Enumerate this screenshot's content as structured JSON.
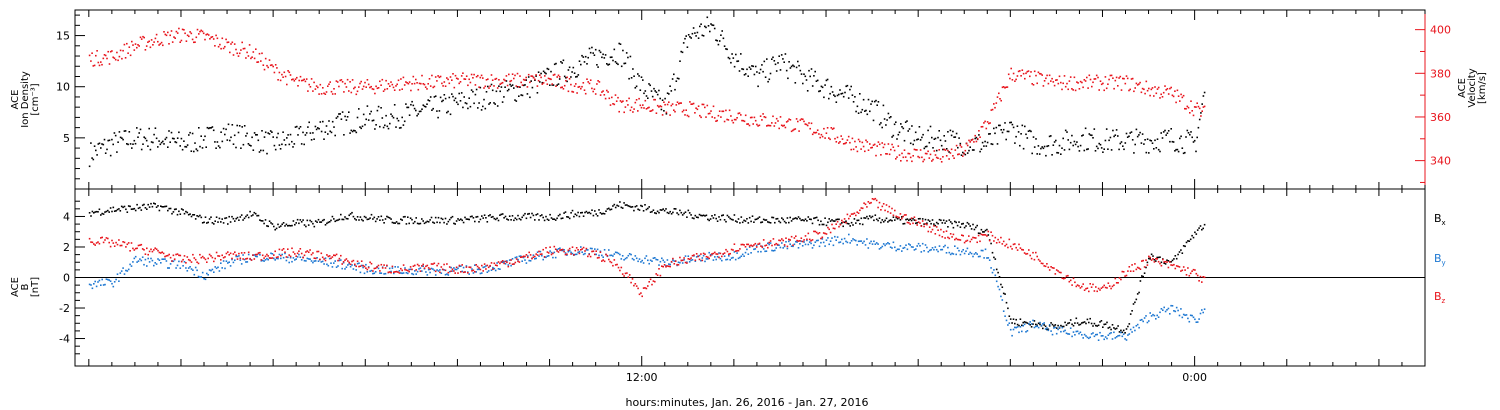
{
  "chart_data": [
    {
      "type": "scatter",
      "ylabel_left": [
        "ACE",
        "Ion Density",
        "[cm⁻³]"
      ],
      "ylabel_right": [
        "ACE",
        "Velocity",
        "[km/s]"
      ],
      "y_left_range": [
        0,
        17.5
      ],
      "y_left_ticks": [
        "5",
        "10",
        "15"
      ],
      "y_right_range": [
        327,
        409
      ],
      "y_right_ticks": [
        "340",
        "360",
        "380",
        "400"
      ],
      "series": [
        {
          "name": "",
          "color": "#000000",
          "axis": "left",
          "x": [
            0,
            0.5,
            1,
            1.5,
            2,
            2.5,
            3,
            3.5,
            4,
            4.5,
            5,
            5.5,
            6,
            6.5,
            7,
            7.5,
            8,
            8.5,
            9,
            9.5,
            10,
            10.5,
            11,
            11.5,
            12,
            12.5,
            13,
            13.5,
            14,
            14.5,
            15,
            15.5,
            16,
            16.5,
            17,
            17.5,
            18,
            18.5,
            19,
            19.5,
            20,
            20.5,
            21,
            21.5,
            22,
            22.5,
            23,
            23.5,
            24,
            24.2
          ],
          "y": [
            3.5,
            4.5,
            5,
            5,
            4.5,
            5,
            5.5,
            5,
            4.5,
            5,
            6,
            6.5,
            7,
            7,
            7.5,
            8,
            8.5,
            9,
            9.5,
            10,
            11,
            12,
            13,
            13.5,
            10,
            8,
            15,
            16,
            13,
            11,
            12.5,
            11,
            10,
            9,
            8,
            6,
            5,
            5,
            4.5,
            4.5,
            6,
            4.5,
            4.5,
            5,
            4.8,
            4.8,
            4.8,
            5,
            4.5,
            9.5
          ]
        },
        {
          "name": "",
          "color": "#e8141c",
          "axis": "right",
          "x": [
            0,
            0.5,
            1,
            1.5,
            2,
            2.5,
            3,
            3.5,
            4,
            4.5,
            5,
            5.5,
            6,
            6.5,
            7,
            7.5,
            8,
            8.5,
            9,
            9.5,
            10,
            10.5,
            11,
            11.5,
            12,
            12.5,
            13,
            13.5,
            14,
            14.5,
            15,
            15.5,
            16,
            16.5,
            17,
            17.5,
            18,
            18.5,
            19,
            19.5,
            20,
            20.5,
            21,
            21.5,
            22,
            22.5,
            23,
            23.5,
            24,
            24.2
          ],
          "y": [
            387,
            388,
            393,
            396,
            398,
            397,
            393,
            390,
            382,
            376,
            374,
            374,
            374,
            375,
            376,
            376,
            377,
            377,
            377,
            377,
            377,
            375,
            374,
            366,
            366,
            364,
            364,
            362,
            361,
            359,
            358,
            356,
            353,
            349,
            346,
            344,
            343,
            342,
            345,
            358,
            380,
            378,
            376,
            376,
            376,
            376,
            373,
            371,
            364,
            362
          ]
        }
      ]
    },
    {
      "type": "scatter",
      "ylabel": [
        "ACE",
        "B",
        "[nT]"
      ],
      "y_range": [
        -5.8,
        5.8
      ],
      "y_ticks": [
        "-4",
        "-2",
        "0",
        "2",
        "4"
      ],
      "legend": "right",
      "series": [
        {
          "name": "Bx",
          "color": "#000000",
          "x": [
            0,
            0.5,
            1,
            1.5,
            2,
            2.5,
            3,
            3.5,
            4,
            4.5,
            5,
            5.5,
            6,
            6.5,
            7,
            7.5,
            8,
            8.5,
            9,
            9.5,
            10,
            10.5,
            11,
            11.5,
            12,
            12.5,
            13,
            13.5,
            14,
            14.5,
            15,
            15.5,
            16,
            16.5,
            17,
            17.5,
            18,
            18.5,
            19,
            19.5,
            20,
            20.5,
            21,
            21.5,
            22,
            22.5,
            23,
            23.5,
            24,
            24.2
          ],
          "y": [
            4.3,
            4.5,
            4.6,
            4.7,
            4.3,
            3.8,
            3.8,
            4.2,
            3.4,
            3.6,
            3.6,
            4.1,
            4,
            3.8,
            3.8,
            3.8,
            3.8,
            3.9,
            4,
            4,
            4,
            4.2,
            4.3,
            4.8,
            4.6,
            4.4,
            4.2,
            4,
            3.9,
            3.8,
            3.8,
            3.8,
            3.7,
            3.6,
            3.9,
            3.8,
            3.7,
            3.6,
            3.5,
            3,
            -2.8,
            -3,
            -3.2,
            -2.8,
            -3,
            -3.4,
            1.5,
            1,
            3,
            3.5
          ]
        },
        {
          "name": "By",
          "color": "#1e78d2",
          "x": [
            0,
            0.5,
            1,
            1.5,
            2,
            2.5,
            3,
            3.5,
            4,
            4.5,
            5,
            5.5,
            6,
            6.5,
            7,
            7.5,
            8,
            8.5,
            9,
            9.5,
            10,
            10.5,
            11,
            11.5,
            12,
            12.5,
            13,
            13.5,
            14,
            14.5,
            15,
            15.5,
            16,
            16.5,
            17,
            17.5,
            18,
            18.5,
            19,
            19.5,
            20,
            20.5,
            21,
            21.5,
            22,
            22.5,
            23,
            23.5,
            24,
            24.2
          ],
          "y": [
            -0.4,
            -0.3,
            1.2,
            1,
            0.9,
            0.2,
            1,
            1.4,
            1.4,
            1.3,
            1.1,
            0.9,
            0.6,
            0.5,
            0.5,
            0.5,
            0.5,
            0.6,
            0.9,
            1.3,
            1.6,
            1.8,
            1.8,
            1.4,
            1.3,
            1,
            1.2,
            1.4,
            1.5,
            2,
            2.1,
            2.2,
            2.4,
            2.6,
            2.2,
            2.1,
            2,
            1.9,
            1.8,
            1.6,
            -3.6,
            -3,
            -3.5,
            -3.6,
            -3.8,
            -3.8,
            -2.5,
            -2,
            -2.8,
            -2
          ]
        },
        {
          "name": "Bz",
          "color": "#e8141c",
          "x": [
            0,
            0.5,
            1,
            1.5,
            2,
            2.5,
            3,
            3.5,
            4,
            4.5,
            5,
            5.5,
            6,
            6.5,
            7,
            7.5,
            8,
            8.5,
            9,
            9.5,
            10,
            10.5,
            11,
            11.5,
            12,
            12.5,
            13,
            13.5,
            14,
            14.5,
            15,
            15.5,
            16,
            16.5,
            17,
            17.5,
            18,
            18.5,
            19,
            19.5,
            20,
            20.5,
            21,
            21.5,
            22,
            22.5,
            23,
            23.5,
            24,
            24.2
          ],
          "y": [
            2.5,
            2.3,
            2,
            1.7,
            1.2,
            1.3,
            1.5,
            1.4,
            1.6,
            1.7,
            1.5,
            1.2,
            0.8,
            0.6,
            0.6,
            0.7,
            0.6,
            0.7,
            1,
            1.4,
            1.8,
            1.8,
            1.6,
            0.8,
            -1,
            0.9,
            1.2,
            1.5,
            2,
            2.3,
            2.3,
            2.6,
            3,
            4,
            5,
            4.2,
            3.6,
            3,
            2.5,
            2.8,
            2.2,
            1.5,
            0.5,
            -0.5,
            -0.8,
            0.4,
            1.2,
            0.8,
            0.3,
            -0.2
          ]
        }
      ]
    }
  ],
  "x_axis": {
    "xlabel": "hours:minutes, Jan. 26, 2016 - Jan. 27, 2016",
    "x_range": [
      -0.3,
      29
    ],
    "major_ticks": [
      {
        "x": 12,
        "label": "12:00"
      },
      {
        "x": 24,
        "label": "0:00"
      }
    ],
    "minor_step": 2,
    "sub_step": 0.5
  }
}
